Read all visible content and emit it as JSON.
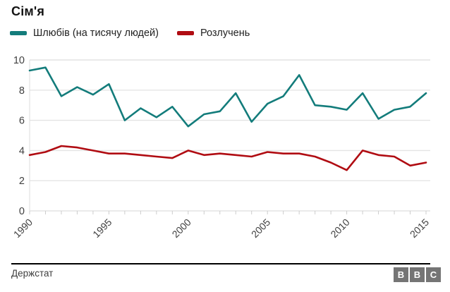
{
  "title": "Сім'я",
  "legend": [
    {
      "label": "Шлюбів (на тисячу людей)",
      "color": "#137c7b"
    },
    {
      "label": "Розлучень",
      "color": "#b00c12"
    }
  ],
  "footer": {
    "source": "Держстат",
    "logo_letters": [
      "B",
      "B",
      "C"
    ]
  },
  "colors": {
    "marriages_line": "#137c7b",
    "divorces_line": "#b00c12",
    "axis_text": "#404040",
    "gridline": "#e4e4e4",
    "tick": "#cccccc"
  },
  "chart_data": {
    "type": "line",
    "title": "Сім'я",
    "x": [
      1990,
      1991,
      1992,
      1993,
      1994,
      1995,
      1996,
      1997,
      1998,
      1999,
      2000,
      2001,
      2002,
      2003,
      2004,
      2005,
      2006,
      2007,
      2008,
      2009,
      2010,
      2011,
      2012,
      2013,
      2014,
      2015
    ],
    "series": [
      {
        "name": "Шлюбів (на тисячу людей)",
        "color": "#137c7b",
        "values": [
          9.3,
          9.5,
          7.6,
          8.2,
          7.7,
          8.4,
          6.0,
          6.8,
          6.2,
          6.9,
          5.6,
          6.4,
          6.6,
          7.8,
          5.9,
          7.1,
          7.6,
          9.0,
          7.0,
          6.9,
          6.7,
          7.8,
          6.1,
          6.7,
          6.9,
          7.8
        ]
      },
      {
        "name": "Розлучень",
        "color": "#b00c12",
        "values": [
          3.7,
          3.9,
          4.3,
          4.2,
          4.0,
          3.8,
          3.8,
          3.7,
          3.6,
          3.5,
          4.0,
          3.7,
          3.8,
          3.7,
          3.6,
          3.9,
          3.8,
          3.8,
          3.6,
          3.2,
          2.7,
          4.0,
          3.7,
          3.6,
          3.0,
          3.2
        ]
      }
    ],
    "ylim": [
      0,
      10
    ],
    "yticks": [
      0,
      2,
      4,
      6,
      8,
      10
    ],
    "xticks_labeled": [
      1990,
      1995,
      2000,
      2005,
      2010,
      2015
    ],
    "grid": "horizontal",
    "legend_position": "top",
    "source": "Держстат"
  }
}
